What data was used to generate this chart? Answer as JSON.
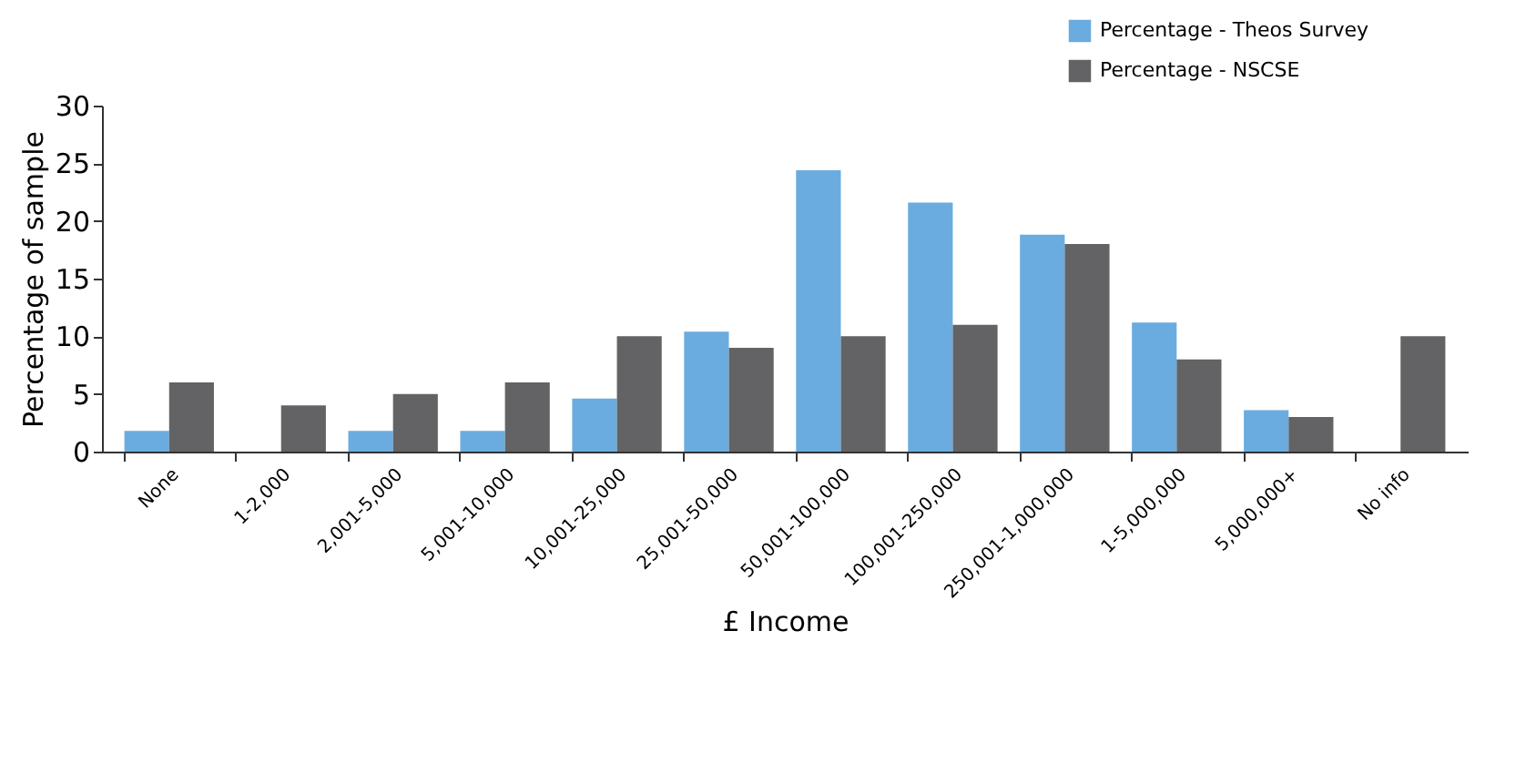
{
  "chart_data": {
    "type": "bar",
    "xlabel": "£ Income",
    "ylabel": "Percentage of sample",
    "categories": [
      "None",
      "1-2,000",
      "2,001-5,000",
      "5,001-10,000",
      "10,001-25,000",
      "25,001-50,000",
      "50,001-100,000",
      "100,001-250,000",
      "250,001-1,000,000",
      "1-5,000,000",
      "5,000,000+",
      "No info"
    ],
    "series": [
      {
        "name": "Percentage - Theos Survey",
        "color": "#6aacdf",
        "values": [
          1.8,
          0,
          1.8,
          1.8,
          4.6,
          10.4,
          24.4,
          21.6,
          18.8,
          11.2,
          3.6,
          0
        ]
      },
      {
        "name": "Percentage - NSCSE",
        "color": "#636365",
        "values": [
          6,
          4,
          5,
          6,
          10,
          9,
          10,
          11,
          18,
          8,
          3,
          10
        ]
      }
    ],
    "ylim": [
      0,
      30
    ],
    "yticks": [
      0,
      5,
      10,
      15,
      20,
      25,
      30
    ],
    "grid": false,
    "legend": "top right"
  }
}
